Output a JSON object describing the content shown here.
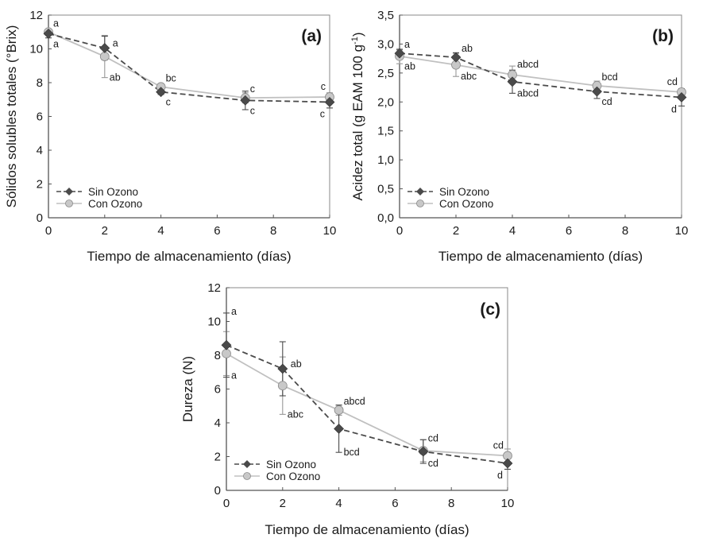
{
  "colors": {
    "sin_ozono": "#4a4a4a",
    "con_ozono": "#c0c0c0",
    "con_ozono_fill": "#c8c8c8",
    "axis": "#555555"
  },
  "chart_data": [
    {
      "id": "a",
      "type": "line",
      "panel_label": "(a)",
      "xlabel": "Tiempo de almacenamiento (días)",
      "ylabel": "Sólidos solubles totales (°Brix)",
      "xlim": [
        0,
        10
      ],
      "ylim": [
        0,
        12
      ],
      "x_ticks": [
        0,
        2,
        4,
        6,
        8,
        10
      ],
      "y_ticks": [
        0,
        2,
        4,
        6,
        8,
        10,
        12
      ],
      "y_tick_labels": [
        "0",
        "2",
        "4",
        "6",
        "8",
        "10",
        "12"
      ],
      "x": [
        0,
        2,
        4,
        7,
        10
      ],
      "legend": {
        "position": "bottom-left",
        "entries": [
          "Sin Ozono",
          "Con Ozono"
        ]
      },
      "grid": false,
      "series": [
        {
          "name": "Sin Ozono",
          "marker": "diamond",
          "line": "dashed",
          "values": [
            10.9,
            10.05,
            7.45,
            6.95,
            6.85
          ],
          "errors": [
            0.25,
            0.7,
            0.15,
            0.55,
            0.35
          ],
          "letters": [
            "a",
            "a",
            "c",
            "c",
            "c"
          ],
          "letter_pos": [
            "below",
            "right",
            "below",
            "below",
            "below-left"
          ]
        },
        {
          "name": "Con Ozono",
          "marker": "circle",
          "line": "solid",
          "values": [
            11.0,
            9.55,
            7.75,
            7.1,
            7.15
          ],
          "errors": [
            0.15,
            1.25,
            0.1,
            0.3,
            0.25
          ],
          "letters": [
            "a",
            "ab",
            "bc",
            "c",
            "c"
          ],
          "letter_pos": [
            "above",
            "below",
            "above",
            "above",
            "above-left"
          ]
        }
      ]
    },
    {
      "id": "b",
      "type": "line",
      "panel_label": "(b)",
      "xlabel": "Tiempo de almacenamiento (días)",
      "ylabel": "Acidez total (g EAM 100 g",
      "ylabel_sup": "-1",
      "ylabel_end": ")",
      "xlim": [
        0,
        10
      ],
      "ylim": [
        0,
        3.5
      ],
      "x_ticks": [
        0,
        2,
        4,
        6,
        8,
        10
      ],
      "y_ticks": [
        0,
        0.5,
        1.0,
        1.5,
        2.0,
        2.5,
        3.0,
        3.5
      ],
      "y_tick_labels": [
        "0,0",
        "0,5",
        "1,0",
        "1,5",
        "2,0",
        "2,5",
        "3,0",
        "3,5"
      ],
      "x": [
        0,
        2,
        4,
        7,
        10
      ],
      "legend": {
        "position": "bottom-left",
        "entries": [
          "Sin Ozono",
          "Con Ozono"
        ]
      },
      "grid": false,
      "series": [
        {
          "name": "Sin Ozono",
          "marker": "diamond",
          "line": "dashed",
          "values": [
            2.84,
            2.77,
            2.35,
            2.18,
            2.08
          ],
          "errors": [
            0.06,
            0.08,
            0.2,
            0.12,
            0.15
          ],
          "letters": [
            "a",
            "ab",
            "abcd",
            "cd",
            "d"
          ],
          "letter_pos": [
            "above",
            "above-right",
            "below",
            "below",
            "below-left"
          ]
        },
        {
          "name": "Con Ozono",
          "marker": "circle",
          "line": "solid",
          "values": [
            2.79,
            2.64,
            2.47,
            2.28,
            2.17
          ],
          "errors": [
            0.13,
            0.2,
            0.15,
            0.08,
            0.06
          ],
          "letters": [
            "ab",
            "abc",
            "abcd",
            "bcd",
            "cd"
          ],
          "letter_pos": [
            "below",
            "below",
            "above",
            "above",
            "above-left"
          ]
        }
      ]
    },
    {
      "id": "c",
      "type": "line",
      "panel_label": "(c)",
      "xlabel": "Tiempo de almacenamiento (días)",
      "ylabel": "Dureza (N)",
      "xlim": [
        0,
        10
      ],
      "ylim": [
        0,
        12
      ],
      "x_ticks": [
        0,
        2,
        4,
        6,
        8,
        10
      ],
      "y_ticks": [
        0,
        2,
        4,
        6,
        8,
        10,
        12
      ],
      "y_tick_labels": [
        "0",
        "2",
        "4",
        "6",
        "8",
        "10",
        "12"
      ],
      "x": [
        0,
        2,
        4,
        7,
        10
      ],
      "legend": {
        "position": "bottom-left",
        "entries": [
          "Sin Ozono",
          "Con Ozono"
        ]
      },
      "grid": false,
      "series": [
        {
          "name": "Sin Ozono",
          "marker": "diamond",
          "line": "dashed",
          "values": [
            8.6,
            7.2,
            3.65,
            2.3,
            1.6
          ],
          "errors": [
            1.9,
            1.6,
            1.4,
            0.7,
            0.35
          ],
          "letters": [
            "a",
            "ab",
            "bcd",
            "cd",
            "d"
          ],
          "letter_pos": [
            "above",
            "right",
            "below",
            "below",
            "below-left"
          ]
        },
        {
          "name": "Con Ozono",
          "marker": "circle",
          "line": "solid",
          "values": [
            8.1,
            6.2,
            4.75,
            2.35,
            2.05
          ],
          "errors": [
            1.3,
            1.7,
            0.3,
            0.65,
            0.4
          ],
          "letters": [
            "a",
            "abc",
            "abcd",
            "cd",
            "cd"
          ],
          "letter_pos": [
            "below",
            "below",
            "above",
            "above",
            "above-left"
          ]
        }
      ]
    }
  ]
}
